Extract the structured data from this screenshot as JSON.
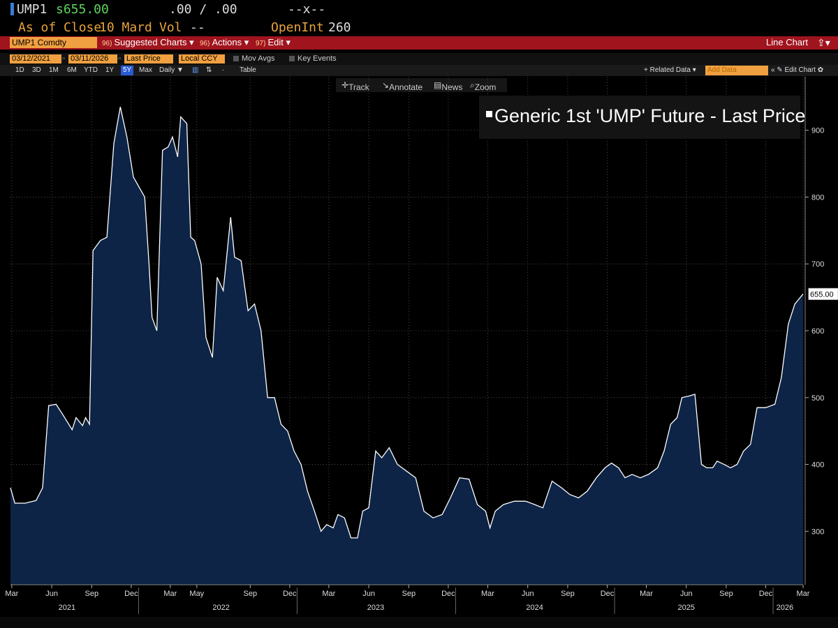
{
  "header": {
    "ticker_short": "UMP1",
    "price": "s655.00",
    "change": ".00 / .00",
    "range": "--x--",
    "as_of": "As of Close",
    "date": "10 Mard",
    "vol_label": "Vol",
    "vol_value": "--",
    "openint_label": "OpenInt",
    "openint_value": "260"
  },
  "toolbar": {
    "ticker": "UMP1 Comdty",
    "suggested_num": "96)",
    "suggested": "Suggested Charts",
    "actions_num": "96)",
    "actions": "Actions",
    "edit_num": "97)",
    "edit": "Edit",
    "chart_type": "Line Chart",
    "caret": "▾"
  },
  "controls": {
    "start_date": "03/12/2021",
    "end_date": "03/11/2026",
    "price_type": "Last Price",
    "currency": "Local CCY",
    "mov_avgs": "Mov Avgs",
    "key_events": "Key Events"
  },
  "periods": [
    "1D",
    "3D",
    "1M",
    "6M",
    "YTD",
    "1Y",
    "5Y",
    "Max",
    "Daily ▼"
  ],
  "selected_period": "5Y",
  "table_label": "Table",
  "related_data": "+ Related Data ▾",
  "add_data": "Add Data",
  "edit_chart": "« ✎ Edit Chart ✿",
  "chart_tools": {
    "track": "Track",
    "annotate": "Annotate",
    "news": "News",
    "zoom": "Zoom"
  },
  "colors": {
    "fill": "#0d2447",
    "line": "#ffffff",
    "grid": "#5a5a5a",
    "red_bar": "#a0141e",
    "amber": "#f0a040"
  },
  "chart_data": {
    "type": "area",
    "title": "Generic 1st 'UMP' Future - Last Price",
    "last_value_label": "655.00",
    "y_ticks": [
      300,
      400,
      500,
      600,
      700,
      800,
      900
    ],
    "ylim": [
      220,
      980
    ],
    "xlim": [
      "2021-03-12",
      "2026-03-11"
    ],
    "x_tick_labels": [
      {
        "label": "Mar",
        "date": "2021-03-15"
      },
      {
        "label": "Jun",
        "date": "2021-06-15"
      },
      {
        "label": "Sep",
        "date": "2021-09-15"
      },
      {
        "label": "Dec",
        "date": "2021-12-15"
      },
      {
        "label": "Mar",
        "date": "2022-03-15"
      },
      {
        "label": "May",
        "date": "2022-05-15"
      },
      {
        "label": "Sep",
        "date": "2022-09-15"
      },
      {
        "label": "Dec",
        "date": "2022-12-15"
      },
      {
        "label": "Mar",
        "date": "2023-03-15"
      },
      {
        "label": "Jun",
        "date": "2023-06-15"
      },
      {
        "label": "Sep",
        "date": "2023-09-15"
      },
      {
        "label": "Dec",
        "date": "2023-12-15"
      },
      {
        "label": "Mar",
        "date": "2024-03-15"
      },
      {
        "label": "Jun",
        "date": "2024-06-15"
      },
      {
        "label": "Sep",
        "date": "2024-09-15"
      },
      {
        "label": "Dec",
        "date": "2024-12-15"
      },
      {
        "label": "Mar",
        "date": "2025-03-15"
      },
      {
        "label": "Jun",
        "date": "2025-06-15"
      },
      {
        "label": "Sep",
        "date": "2025-09-15"
      },
      {
        "label": "Dec",
        "date": "2025-12-15"
      },
      {
        "label": "Mar",
        "date": "2026-03-11"
      }
    ],
    "year_labels": [
      {
        "label": "2021",
        "date": "2021-07-20"
      },
      {
        "label": "2022",
        "date": "2022-07-10"
      },
      {
        "label": "2023",
        "date": "2023-07-01"
      },
      {
        "label": "2024",
        "date": "2024-07-01"
      },
      {
        "label": "2025",
        "date": "2025-06-15"
      },
      {
        "label": "2026",
        "date": "2026-01-28"
      }
    ],
    "series": [
      {
        "points": [
          [
            "2021-03-12",
            365
          ],
          [
            "2021-03-22",
            342
          ],
          [
            "2021-04-15",
            342
          ],
          [
            "2021-05-10",
            346
          ],
          [
            "2021-05-25",
            365
          ],
          [
            "2021-06-08",
            488
          ],
          [
            "2021-06-25",
            490
          ],
          [
            "2021-07-10",
            475
          ],
          [
            "2021-08-01",
            452
          ],
          [
            "2021-08-10",
            470
          ],
          [
            "2021-08-25",
            458
          ],
          [
            "2021-09-01",
            470
          ],
          [
            "2021-09-10",
            460
          ],
          [
            "2021-09-18",
            720
          ],
          [
            "2021-10-05",
            735
          ],
          [
            "2021-10-20",
            740
          ],
          [
            "2021-11-05",
            880
          ],
          [
            "2021-11-20",
            935
          ],
          [
            "2021-12-05",
            890
          ],
          [
            "2021-12-20",
            830
          ],
          [
            "2022-01-15",
            800
          ],
          [
            "2022-01-25",
            700
          ],
          [
            "2022-02-01",
            620
          ],
          [
            "2022-02-12",
            600
          ],
          [
            "2022-02-25",
            870
          ],
          [
            "2022-03-10",
            875
          ],
          [
            "2022-03-20",
            890
          ],
          [
            "2022-04-01",
            860
          ],
          [
            "2022-04-08",
            920
          ],
          [
            "2022-04-22",
            910
          ],
          [
            "2022-05-01",
            740
          ],
          [
            "2022-05-10",
            735
          ],
          [
            "2022-05-25",
            700
          ],
          [
            "2022-06-05",
            590
          ],
          [
            "2022-06-20",
            560
          ],
          [
            "2022-07-01",
            680
          ],
          [
            "2022-07-15",
            660
          ],
          [
            "2022-08-01",
            770
          ],
          [
            "2022-08-10",
            710
          ],
          [
            "2022-08-25",
            705
          ],
          [
            "2022-09-10",
            630
          ],
          [
            "2022-09-25",
            640
          ],
          [
            "2022-10-10",
            600
          ],
          [
            "2022-10-25",
            500
          ],
          [
            "2022-11-10",
            500
          ],
          [
            "2022-11-25",
            460
          ],
          [
            "2022-12-10",
            450
          ],
          [
            "2022-12-25",
            420
          ],
          [
            "2023-01-10",
            400
          ],
          [
            "2023-01-25",
            360
          ],
          [
            "2023-02-10",
            330
          ],
          [
            "2023-02-25",
            300
          ],
          [
            "2023-03-10",
            310
          ],
          [
            "2023-03-25",
            305
          ],
          [
            "2023-04-05",
            325
          ],
          [
            "2023-04-20",
            320
          ],
          [
            "2023-05-05",
            290
          ],
          [
            "2023-05-20",
            290
          ],
          [
            "2023-06-01",
            330
          ],
          [
            "2023-06-15",
            335
          ],
          [
            "2023-07-01",
            420
          ],
          [
            "2023-07-15",
            410
          ],
          [
            "2023-08-01",
            425
          ],
          [
            "2023-08-20",
            400
          ],
          [
            "2023-09-10",
            390
          ],
          [
            "2023-10-01",
            380
          ],
          [
            "2023-10-20",
            330
          ],
          [
            "2023-11-10",
            320
          ],
          [
            "2023-12-01",
            325
          ],
          [
            "2023-12-20",
            350
          ],
          [
            "2024-01-10",
            380
          ],
          [
            "2024-02-01",
            378
          ],
          [
            "2024-02-20",
            340
          ],
          [
            "2024-03-10",
            330
          ],
          [
            "2024-03-20",
            305
          ],
          [
            "2024-04-01",
            330
          ],
          [
            "2024-04-20",
            340
          ],
          [
            "2024-05-15",
            345
          ],
          [
            "2024-06-10",
            345
          ],
          [
            "2024-07-01",
            340
          ],
          [
            "2024-07-20",
            335
          ],
          [
            "2024-08-10",
            375
          ],
          [
            "2024-09-01",
            365
          ],
          [
            "2024-09-20",
            355
          ],
          [
            "2024-10-10",
            350
          ],
          [
            "2024-10-30",
            360
          ],
          [
            "2024-11-20",
            380
          ],
          [
            "2024-12-10",
            395
          ],
          [
            "2024-12-25",
            402
          ],
          [
            "2025-01-10",
            395
          ],
          [
            "2025-01-25",
            380
          ],
          [
            "2025-02-10",
            385
          ],
          [
            "2025-03-01",
            380
          ],
          [
            "2025-03-20",
            385
          ],
          [
            "2025-04-10",
            395
          ],
          [
            "2025-04-25",
            420
          ],
          [
            "2025-05-10",
            460
          ],
          [
            "2025-05-25",
            470
          ],
          [
            "2025-06-05",
            500
          ],
          [
            "2025-06-20",
            502
          ],
          [
            "2025-07-05",
            505
          ],
          [
            "2025-07-20",
            400
          ],
          [
            "2025-08-01",
            395
          ],
          [
            "2025-08-15",
            395
          ],
          [
            "2025-08-25",
            405
          ],
          [
            "2025-09-10",
            400
          ],
          [
            "2025-09-25",
            395
          ],
          [
            "2025-10-10",
            400
          ],
          [
            "2025-10-25",
            420
          ],
          [
            "2025-11-10",
            430
          ],
          [
            "2025-11-25",
            485
          ],
          [
            "2025-12-15",
            485
          ],
          [
            "2026-01-05",
            490
          ],
          [
            "2026-01-20",
            530
          ],
          [
            "2026-02-05",
            610
          ],
          [
            "2026-02-20",
            640
          ],
          [
            "2026-03-11",
            655
          ]
        ]
      }
    ]
  }
}
